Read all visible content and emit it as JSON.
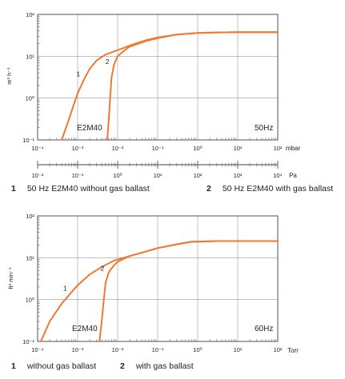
{
  "chart_data": [
    {
      "type": "line",
      "title": "",
      "ylabel": "m³ h⁻¹",
      "xlabel": "mbar",
      "xscale": "log",
      "yscale": "log",
      "xlim": [
        0.0001,
        100
      ],
      "ylim": [
        0.1,
        100
      ],
      "x_ticks": [
        "10⁻⁴",
        "10⁻³",
        "10⁻²",
        "10⁻¹",
        "10⁰",
        "10¹",
        "10²"
      ],
      "y_ticks": [
        "10⁻¹",
        "10⁰",
        "10¹",
        "10²"
      ],
      "secondary_axis": {
        "unit": "Pa",
        "ticks": [
          "10⁻²",
          "10⁻¹",
          "10⁰",
          "10¹",
          "10²",
          "10³",
          "10⁴"
        ]
      },
      "annotations": [
        "E2M40",
        "50Hz"
      ],
      "grid": true,
      "series": [
        {
          "name": "1",
          "color": "#f07830",
          "points": [
            [
              0.0004,
              0.1
            ],
            [
              0.0006,
              0.3
            ],
            [
              0.0008,
              0.7
            ],
            [
              0.001,
              1.3
            ],
            [
              0.0015,
              3
            ],
            [
              0.002,
              5
            ],
            [
              0.003,
              8
            ],
            [
              0.005,
              11
            ],
            [
              0.01,
              14
            ],
            [
              0.02,
              18
            ],
            [
              0.05,
              24
            ],
            [
              0.1,
              28
            ],
            [
              0.3,
              33
            ],
            [
              1,
              36
            ],
            [
              3,
              37
            ],
            [
              10,
              37.5
            ],
            [
              100,
              37.5
            ]
          ]
        },
        {
          "name": "2",
          "color": "#f07830",
          "points": [
            [
              0.0055,
              0.1
            ],
            [
              0.006,
              0.3
            ],
            [
              0.0065,
              1
            ],
            [
              0.007,
              3
            ],
            [
              0.008,
              6
            ],
            [
              0.009,
              8
            ],
            [
              0.01,
              10
            ],
            [
              0.015,
              14
            ],
            [
              0.02,
              17
            ],
            [
              0.05,
              23
            ],
            [
              0.1,
              27
            ],
            [
              0.3,
              33
            ],
            [
              1,
              36
            ],
            [
              3,
              37
            ],
            [
              10,
              37.5
            ],
            [
              100,
              37.5
            ]
          ]
        }
      ]
    },
    {
      "type": "line",
      "title": "",
      "ylabel": "ft³ min⁻¹",
      "xlabel": "Torr",
      "xscale": "log",
      "yscale": "log",
      "xlim": [
        0.0001,
        100
      ],
      "ylim": [
        0.1,
        100
      ],
      "x_ticks": [
        "10⁻⁴",
        "10⁻³",
        "10⁻²",
        "10⁻¹",
        "10⁰",
        "10¹",
        "10²"
      ],
      "y_ticks": [
        "10⁻¹",
        "10⁰",
        "10¹",
        "10²"
      ],
      "annotations": [
        "E2M40",
        "60Hz"
      ],
      "grid": true,
      "series": [
        {
          "name": "1",
          "color": "#f07830",
          "points": [
            [
              0.00012,
              0.1
            ],
            [
              0.0002,
              0.3
            ],
            [
              0.0004,
              0.8
            ],
            [
              0.0007,
              1.5
            ],
            [
              0.001,
              2.2
            ],
            [
              0.002,
              4
            ],
            [
              0.004,
              6
            ],
            [
              0.008,
              8.5
            ],
            [
              0.02,
              11
            ],
            [
              0.05,
              14
            ],
            [
              0.1,
              17
            ],
            [
              0.3,
              21
            ],
            [
              0.7,
              24
            ],
            [
              3,
              25
            ],
            [
              100,
              25
            ]
          ]
        },
        {
          "name": "2",
          "color": "#f07830",
          "points": [
            [
              0.0035,
              0.1
            ],
            [
              0.004,
              0.3
            ],
            [
              0.0045,
              1
            ],
            [
              0.005,
              2.5
            ],
            [
              0.006,
              4.5
            ],
            [
              0.008,
              6.5
            ],
            [
              0.01,
              8
            ],
            [
              0.02,
              11
            ],
            [
              0.05,
              14
            ],
            [
              0.1,
              17
            ],
            [
              0.3,
              21
            ],
            [
              0.7,
              24
            ],
            [
              3,
              25
            ],
            [
              100,
              25
            ]
          ]
        }
      ]
    }
  ],
  "captions": [
    [
      {
        "num": "1",
        "text": "50 Hz E2M40 without gas ballast"
      },
      {
        "num": "2",
        "text": "50 Hz E2M40 with gas ballast"
      }
    ],
    [
      {
        "num": "1",
        "text": "without gas ballast"
      },
      {
        "num": "2",
        "text": "with gas ballast"
      }
    ]
  ]
}
